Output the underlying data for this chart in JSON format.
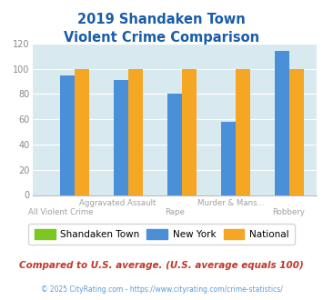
{
  "title_line1": "2019 Shandaken Town",
  "title_line2": "Violent Crime Comparison",
  "categories": [
    "All Violent Crime",
    "Aggravated Assault",
    "Rape",
    "Murder & Mans...",
    "Robbery"
  ],
  "row1_labels": [
    "",
    "Aggravated Assault",
    "",
    "Murder & Mans...",
    ""
  ],
  "row2_labels": [
    "All Violent Crime",
    "",
    "Rape",
    "",
    "Robbery"
  ],
  "shandaken": [
    0,
    0,
    0,
    0,
    0
  ],
  "new_york": [
    95,
    91,
    80,
    58,
    114
  ],
  "national": [
    100,
    100,
    100,
    100,
    100
  ],
  "color_shandaken": "#7dc820",
  "color_new_york": "#4a90d9",
  "color_national": "#f5a623",
  "ylim": [
    0,
    120
  ],
  "yticks": [
    0,
    20,
    40,
    60,
    80,
    100,
    120
  ],
  "background_color": "#d8eaf0",
  "title_color": "#1a5da8",
  "footer_text": "Compared to U.S. average. (U.S. average equals 100)",
  "copyright_text": "© 2025 CityRating.com - https://www.cityrating.com/crime-statistics/",
  "footer_color": "#c0392b",
  "copyright_color": "#5b9bd5",
  "legend_labels": [
    "Shandaken Town",
    "New York",
    "National"
  ],
  "xlabel_color": "#a0a0a0",
  "ytick_color": "#888888"
}
